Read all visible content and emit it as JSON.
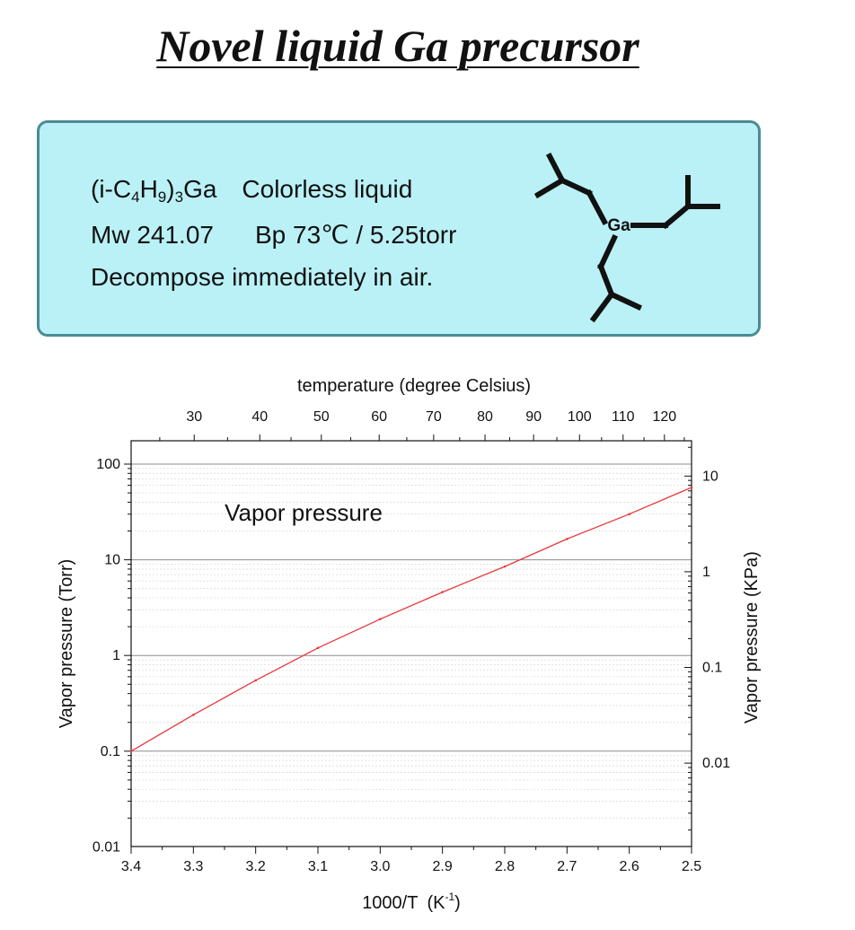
{
  "slide": {
    "title": "Novel liquid Ga precursor"
  },
  "info": {
    "formula_prefix": "(i-C",
    "formula_sub1": "4",
    "formula_mid": "H",
    "formula_sub2": "9",
    "formula_close": ")",
    "formula_sub3": "3",
    "formula_suffix": "Ga",
    "state": "Colorless liquid",
    "mw": "Mw 241.07",
    "bp": "Bp 73℃ / 5.25torr",
    "stability": "Decompose immediately in air.",
    "molecule_atom": "Ga"
  },
  "chart_data": {
    "type": "line",
    "annotation": "Vapor pressure",
    "xlabel": "1000/T",
    "xlabel_unit": "(K",
    "xlabel_unit_sup": "-1",
    "xlabel_unit_close": ")",
    "x_reversed": true,
    "xlim": [
      3.4,
      2.5
    ],
    "x_ticks": [
      "3.4",
      "3.3",
      "3.2",
      "3.1",
      "3.0",
      "2.9",
      "2.8",
      "2.7",
      "2.6",
      "2.5"
    ],
    "top_xlabel": "temperature (degree Celsius)",
    "top_x_ticks": [
      "30",
      "40",
      "50",
      "60",
      "70",
      "80",
      "90",
      "100",
      "110",
      "120"
    ],
    "ylabel": "Vapor pressure (Torr)",
    "yscale": "log",
    "ylim": [
      0.01,
      200
    ],
    "y_ticks": [
      "0.01",
      "0.1",
      "1",
      "10",
      "100"
    ],
    "right_ylabel": "Vapor pressure (KPa)",
    "right_y_ticks": [
      "0.01",
      "0.1",
      "1",
      "10"
    ],
    "grid": true,
    "line_color": "#e8373a",
    "series": [
      {
        "x": [
          3.4,
          3.3,
          3.2,
          3.1,
          3.0,
          2.9,
          2.8,
          2.7,
          2.6,
          2.5
        ],
        "y": [
          0.1,
          0.24,
          0.55,
          1.2,
          2.4,
          4.6,
          8.5,
          16.5,
          30,
          57
        ]
      }
    ]
  }
}
